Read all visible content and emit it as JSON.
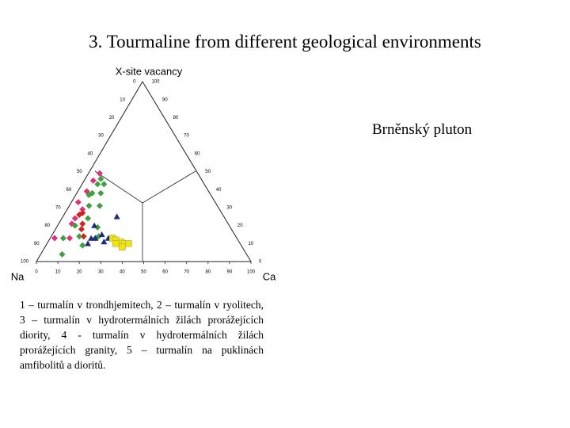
{
  "title": "3. Tourmaline from different geological environments",
  "subtitle": "Brněnský pluton",
  "caption": "1 – turmalín v trondhjemitech, 2 – turmalín v ryolitech, 3 – turmalín v hydrotermálních žilách prorážejících diority, 4 - turmalín v hydrotermálních žilách prorážejících granity, 5 – turmalín na puklinách amfibolitů a dioritů.",
  "chart_data": {
    "type": "ternary",
    "top_label": "X-site vacancy",
    "left_label": "Na",
    "right_label": "Ca",
    "ticks": [
      0,
      10,
      20,
      30,
      40,
      50,
      60,
      70,
      80,
      90,
      100
    ],
    "series": [
      {
        "color": "#e0307a",
        "marker": "diamond",
        "vacancy": [
          49,
          45,
          39,
          33,
          29,
          24,
          21,
          13,
          13
        ],
        "ca": [
          5,
          4,
          4,
          3,
          7,
          6,
          6,
          9,
          2
        ]
      },
      {
        "color": "#d42020",
        "marker": "diamond",
        "vacancy": [
          27,
          26,
          21,
          18,
          14
        ],
        "ca": [
          8,
          7,
          11,
          12,
          15
        ]
      },
      {
        "color": "#3fa03f",
        "marker": "diamond",
        "vacancy": [
          46,
          43,
          43,
          38,
          38,
          37,
          31,
          31,
          24,
          20,
          19,
          14,
          13,
          14,
          9,
          13,
          4
        ],
        "ca": [
          7,
          7,
          10,
          7,
          11,
          6,
          14,
          9,
          12,
          8,
          19,
          13,
          21,
          22,
          17,
          6,
          10
        ]
      },
      {
        "color": "#1f2a80",
        "marker": "triangle",
        "vacancy": [
          25,
          20,
          13,
          13,
          15,
          11,
          10,
          13
        ],
        "ca": [
          25,
          17,
          19,
          21,
          23,
          26,
          19,
          27
        ]
      },
      {
        "color": "#f2e600",
        "marker": "square",
        "vacancy": [
          13,
          12,
          11,
          10,
          8,
          10,
          10
        ],
        "ca": [
          29,
          31,
          34,
          36,
          36,
          38,
          32
        ]
      }
    ]
  }
}
